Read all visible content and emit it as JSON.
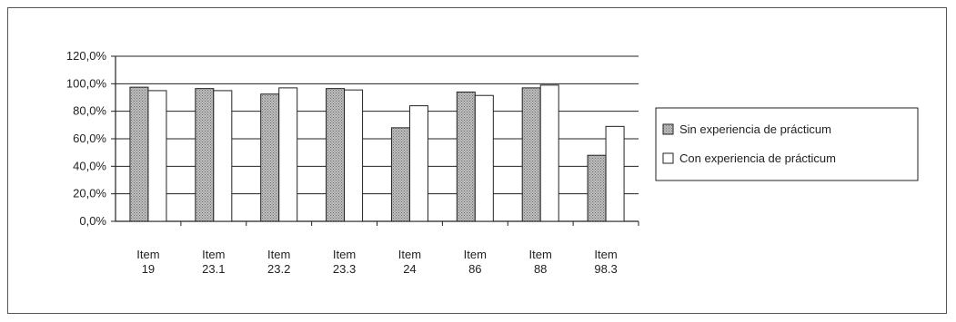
{
  "chart_data": {
    "type": "bar",
    "categories": [
      [
        "Item",
        "19"
      ],
      [
        "Item",
        "23.1"
      ],
      [
        "Item",
        "23.2"
      ],
      [
        "Item",
        "23.3"
      ],
      [
        "Item",
        "24"
      ],
      [
        "Item",
        "86"
      ],
      [
        "Item",
        "88"
      ],
      [
        "Item",
        "98.3"
      ]
    ],
    "series": [
      {
        "name": "Sin experiencia de prácticum",
        "values": [
          97.5,
          96.5,
          92.5,
          96.5,
          68.0,
          94.0,
          97.0,
          48.0
        ],
        "color": "#a8a8a8",
        "pattern": "dotted-gray"
      },
      {
        "name": "Con experiencia de prácticum",
        "values": [
          95.0,
          95.0,
          97.0,
          95.5,
          84.0,
          91.5,
          99.0,
          69.0
        ],
        "color": "#ffffff",
        "pattern": "none"
      }
    ],
    "ylim": [
      0,
      120
    ],
    "yticks": [
      0,
      20,
      40,
      60,
      80,
      100,
      120
    ],
    "ytick_labels": [
      "0,0%",
      "20,0%",
      "40,0%",
      "60,0%",
      "80,0%",
      "100,0%",
      "120,0%"
    ],
    "grid": true,
    "legend_position": "right",
    "title": "",
    "xlabel": "",
    "ylabel": ""
  }
}
